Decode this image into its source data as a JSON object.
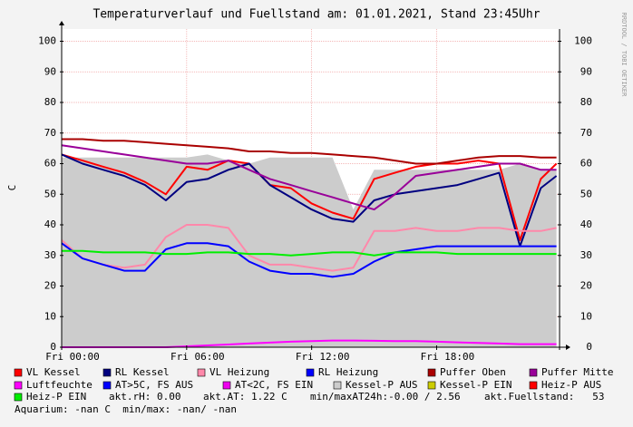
{
  "chart_data": {
    "type": "line",
    "title": "Temperaturverlauf und Fuellstand am: 01.01.2021, Stand 23:45Uhr",
    "y_label": "C",
    "side_label": "RRDTOOL / TOBI OETIKER",
    "x": [
      0,
      1,
      2,
      3,
      4,
      5,
      6,
      7,
      8,
      9,
      10,
      11,
      12,
      13,
      14,
      15,
      16,
      17,
      18,
      19,
      20,
      21,
      22,
      23,
      23.75
    ],
    "xlim": [
      0,
      23.9
    ],
    "xticks": [
      {
        "value": 0,
        "label": "Fri 00:00"
      },
      {
        "value": 6,
        "label": "Fri 06:00"
      },
      {
        "value": 12,
        "label": "Fri 12:00"
      },
      {
        "value": 18,
        "label": "Fri 18:00"
      }
    ],
    "ylim": [
      0,
      104
    ],
    "yticks": [
      0,
      10,
      20,
      30,
      40,
      50,
      60,
      70,
      80,
      90,
      100
    ],
    "y2lim": [
      0,
      104
    ],
    "y2ticks": [
      0,
      10,
      20,
      30,
      40,
      50,
      60,
      70,
      80,
      90,
      100
    ],
    "grid": true,
    "series": [
      {
        "name": "VL Kessel",
        "color": "#ff0000",
        "values": [
          63,
          61,
          59,
          57,
          54,
          50,
          59,
          58,
          61,
          60,
          53,
          52,
          47,
          44,
          42,
          55,
          57,
          59,
          60,
          60,
          61,
          60,
          35,
          55,
          60
        ]
      },
      {
        "name": "RL Kessel",
        "color": "#000080",
        "values": [
          63,
          60,
          58,
          56,
          53,
          48,
          54,
          55,
          58,
          60,
          53,
          49,
          45,
          42,
          41,
          48,
          50,
          51,
          52,
          53,
          55,
          57,
          33,
          52,
          56
        ]
      },
      {
        "name": "VL Heizung",
        "color": "#ff88aa",
        "values": [
          35,
          29,
          27,
          26,
          27,
          36,
          40,
          40,
          39,
          30,
          27,
          27,
          26,
          25,
          26,
          38,
          38,
          39,
          38,
          38,
          39,
          39,
          38,
          38,
          39
        ]
      },
      {
        "name": "RL Heizung",
        "color": "#0000ff",
        "values": [
          34,
          29,
          27,
          25,
          25,
          32,
          34,
          34,
          33,
          28,
          25,
          24,
          24,
          23,
          24,
          28,
          31,
          32,
          33,
          33,
          33,
          33,
          33,
          33,
          33
        ]
      },
      {
        "name": "Puffer Oben",
        "color": "#aa0000",
        "values": [
          68,
          68,
          67.5,
          67.5,
          67,
          66.5,
          66,
          65.5,
          65,
          64,
          64,
          63.5,
          63.5,
          63,
          62.5,
          62,
          61,
          60,
          60,
          61,
          62,
          62.5,
          62.5,
          62,
          62
        ]
      },
      {
        "name": "Puffer Mitte",
        "color": "#990099",
        "values": [
          66,
          65,
          64,
          63,
          62,
          61,
          60,
          60,
          61,
          58,
          55,
          53,
          51,
          49,
          47,
          45,
          50,
          56,
          57,
          58,
          59,
          60,
          60,
          58,
          58
        ]
      },
      {
        "name": "Luftfeuchte",
        "color": "#ff00ff",
        "values": [
          0,
          0,
          0,
          0,
          0,
          0,
          0.3,
          0.6,
          0.9,
          1.2,
          1.5,
          1.8,
          2,
          2.2,
          2.2,
          2.1,
          2,
          2,
          1.8,
          1.6,
          1.4,
          1.2,
          1,
          1,
          1
        ]
      },
      {
        "name": "AT>5C, FS AUS",
        "color": "#0000ff"
      },
      {
        "name": "AT<2C, FS EIN",
        "color": "#ee00ee"
      },
      {
        "name": "Kessel-P AUS",
        "color": "#cccccc",
        "area": true,
        "values": [
          62,
          62,
          62,
          62,
          62,
          62,
          62,
          63,
          61,
          60,
          62,
          62,
          62,
          62,
          45,
          58,
          58,
          58,
          58,
          58,
          58,
          58,
          60,
          58,
          58
        ]
      },
      {
        "name": "Kessel-P EIN",
        "color": "#cccc00"
      },
      {
        "name": "Heiz-P AUS",
        "color": "#ff0000"
      },
      {
        "name": "Heiz-P EIN",
        "color": "#00ee00",
        "values": [
          31.5,
          31.5,
          31,
          31,
          31,
          30.5,
          30.5,
          31,
          31,
          30.5,
          30.5,
          30,
          30.5,
          31,
          31,
          30,
          31,
          31,
          31,
          30.5,
          30.5,
          30.5,
          30.5,
          30.5,
          30.5
        ]
      }
    ],
    "info": [
      "akt.rH: 0.00",
      "akt.AT: 1.22 C",
      "min/maxAT24h:-0.00 / 2.56",
      "akt.Fuellstand:   53",
      "Aquarium: -nan C  min/max: -nan/ -nan"
    ]
  }
}
